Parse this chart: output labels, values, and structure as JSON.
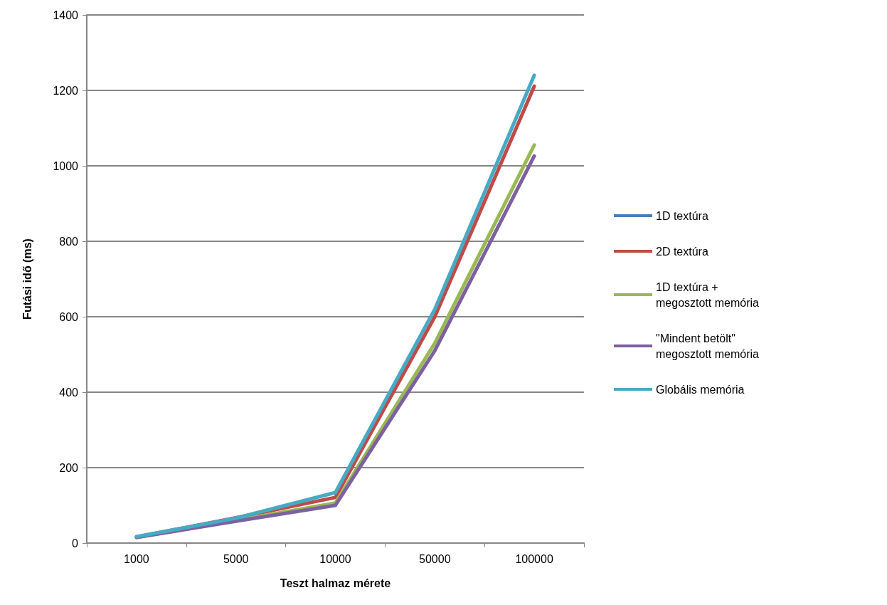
{
  "chart_data": {
    "type": "line",
    "xlabel": "Teszt halmaz mérete",
    "ylabel": "Futási idő (ms)",
    "categories": [
      "1000",
      "5000",
      "10000",
      "50000",
      "100000"
    ],
    "series": [
      {
        "name": "1D textúra",
        "color": "#4a7ebb",
        "values": [
          null,
          null,
          null,
          null,
          null
        ]
      },
      {
        "name": "2D textúra",
        "color": "#be4b48",
        "values": [
          16,
          67,
          121,
          600,
          1211
        ]
      },
      {
        "name": "1D textúra + megosztott memória",
        "color": "#98b954",
        "values": [
          15,
          60,
          106,
          530,
          1055
        ]
      },
      {
        "name": "\"Mindent betölt\" megosztott memória",
        "color": "#7d60a0",
        "values": [
          15,
          58,
          100,
          510,
          1026
        ]
      },
      {
        "name": "Globális memória",
        "color": "#46aac5",
        "values": [
          17,
          66,
          134,
          620,
          1240
        ]
      }
    ],
    "ylim": [
      0,
      1400
    ],
    "yticks": [
      0,
      200,
      400,
      600,
      800,
      1000,
      1200,
      1400
    ],
    "grid": "y",
    "legend": "right",
    "marker": "none"
  }
}
